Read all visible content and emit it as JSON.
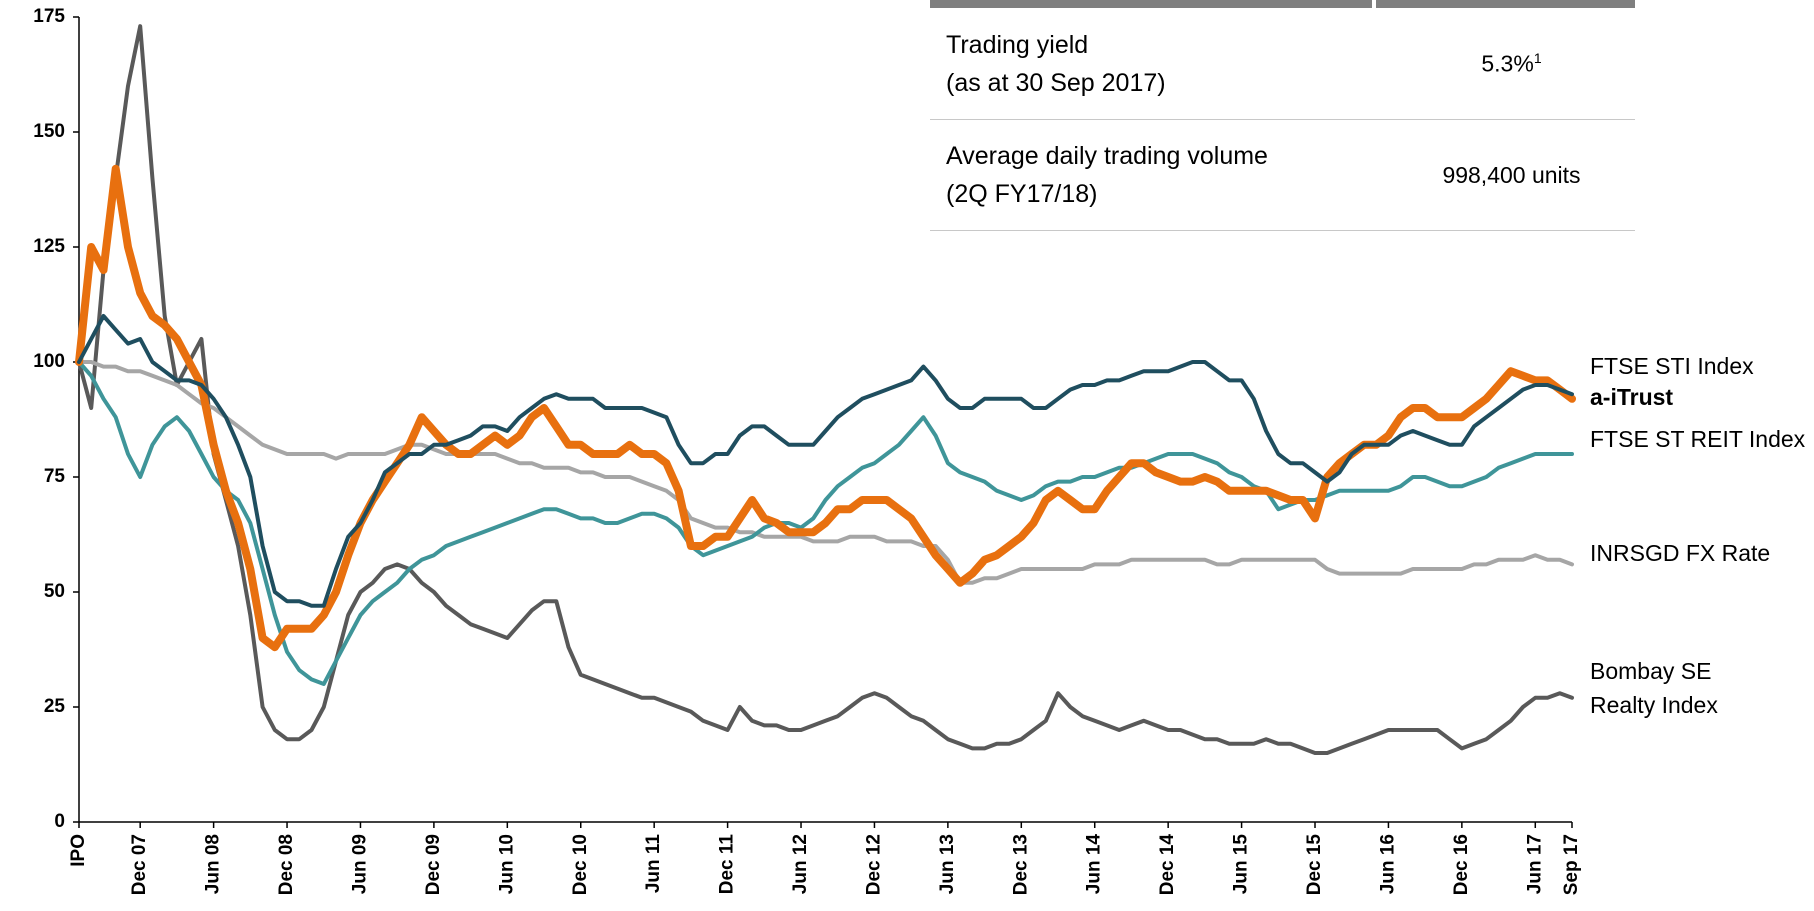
{
  "chart_data": {
    "type": "line",
    "categories": [
      "IPO",
      null,
      null,
      null,
      null,
      "Dec 07",
      null,
      null,
      null,
      null,
      null,
      "Jun 08",
      null,
      null,
      null,
      null,
      null,
      "Dec 08",
      null,
      null,
      null,
      null,
      null,
      "Jun 09",
      null,
      null,
      null,
      null,
      null,
      "Dec 09",
      null,
      null,
      null,
      null,
      null,
      "Jun 10",
      null,
      null,
      null,
      null,
      null,
      "Dec 10",
      null,
      null,
      null,
      null,
      null,
      "Jun 11",
      null,
      null,
      null,
      null,
      null,
      "Dec 11",
      null,
      null,
      null,
      null,
      null,
      "Jun 12",
      null,
      null,
      null,
      null,
      null,
      "Dec 12",
      null,
      null,
      null,
      null,
      null,
      "Jun 13",
      null,
      null,
      null,
      null,
      null,
      "Dec 13",
      null,
      null,
      null,
      null,
      null,
      "Jun 14",
      null,
      null,
      null,
      null,
      null,
      "Dec 14",
      null,
      null,
      null,
      null,
      null,
      "Jun 15",
      null,
      null,
      null,
      null,
      null,
      "Dec 15",
      null,
      null,
      null,
      null,
      null,
      "Jun 16",
      null,
      null,
      null,
      null,
      null,
      "Dec 16",
      null,
      null,
      null,
      null,
      null,
      "Jun 17",
      null,
      null,
      "Sep 17"
    ],
    "series": [
      {
        "name": "FTSE STI Index",
        "color": "#1f4e5f",
        "line_width": 4,
        "values": [
          100,
          105,
          110,
          107,
          104,
          105,
          100,
          98,
          96,
          96,
          95,
          92,
          88,
          82,
          75,
          60,
          50,
          48,
          48,
          47,
          47,
          55,
          62,
          65,
          70,
          76,
          78,
          80,
          80,
          82,
          82,
          83,
          84,
          86,
          86,
          85,
          88,
          90,
          92,
          93,
          92,
          92,
          92,
          90,
          90,
          90,
          90,
          89,
          88,
          82,
          78,
          78,
          80,
          80,
          84,
          86,
          86,
          84,
          82,
          82,
          82,
          85,
          88,
          90,
          92,
          93,
          94,
          95,
          96,
          99,
          96,
          92,
          90,
          90,
          92,
          92,
          92,
          92,
          90,
          90,
          92,
          94,
          95,
          95,
          96,
          96,
          97,
          98,
          98,
          98,
          99,
          100,
          100,
          98,
          96,
          96,
          92,
          85,
          80,
          78,
          78,
          76,
          74,
          76,
          80,
          82,
          82,
          82,
          84,
          85,
          84,
          83,
          82,
          82,
          86,
          88,
          90,
          92,
          94,
          95,
          95,
          94,
          93
        ]
      },
      {
        "name": "a-iTrust",
        "color": "#e8700f",
        "line_width": 8,
        "bold": true,
        "values": [
          100,
          125,
          120,
          142,
          125,
          115,
          110,
          108,
          105,
          100,
          95,
          82,
          72,
          65,
          55,
          40,
          38,
          42,
          42,
          42,
          45,
          50,
          58,
          65,
          70,
          74,
          78,
          82,
          88,
          85,
          82,
          80,
          80,
          82,
          84,
          82,
          84,
          88,
          90,
          86,
          82,
          82,
          80,
          80,
          80,
          82,
          80,
          80,
          78,
          72,
          60,
          60,
          62,
          62,
          66,
          70,
          66,
          65,
          63,
          63,
          63,
          65,
          68,
          68,
          70,
          70,
          70,
          68,
          66,
          62,
          58,
          55,
          52,
          54,
          57,
          58,
          60,
          62,
          65,
          70,
          72,
          70,
          68,
          68,
          72,
          75,
          78,
          78,
          76,
          75,
          74,
          74,
          75,
          74,
          72,
          72,
          72,
          72,
          71,
          70,
          70,
          66,
          75,
          78,
          80,
          82,
          82,
          84,
          88,
          90,
          90,
          88,
          88,
          88,
          90,
          92,
          95,
          98,
          97,
          96,
          96,
          94,
          92
        ]
      },
      {
        "name": "FTSE ST REIT Index",
        "color": "#3f9599",
        "line_width": 4,
        "values": [
          100,
          97,
          92,
          88,
          80,
          75,
          82,
          86,
          88,
          85,
          80,
          75,
          72,
          70,
          65,
          55,
          45,
          37,
          33,
          31,
          30,
          35,
          40,
          45,
          48,
          50,
          52,
          55,
          57,
          58,
          60,
          61,
          62,
          63,
          64,
          65,
          66,
          67,
          68,
          68,
          67,
          66,
          66,
          65,
          65,
          66,
          67,
          67,
          66,
          64,
          60,
          58,
          59,
          60,
          61,
          62,
          64,
          65,
          65,
          64,
          66,
          70,
          73,
          75,
          77,
          78,
          80,
          82,
          85,
          88,
          84,
          78,
          76,
          75,
          74,
          72,
          71,
          70,
          71,
          73,
          74,
          74,
          75,
          75,
          76,
          77,
          77,
          78,
          79,
          80,
          80,
          80,
          79,
          78,
          76,
          75,
          73,
          72,
          68,
          69,
          70,
          70,
          71,
          72,
          72,
          72,
          72,
          72,
          73,
          75,
          75,
          74,
          73,
          73,
          74,
          75,
          77,
          78,
          79,
          80,
          80,
          80,
          80
        ]
      },
      {
        "name": "INRSGD FX Rate",
        "color": "#a6a6a6",
        "line_width": 4,
        "values": [
          100,
          100,
          99,
          99,
          98,
          98,
          97,
          96,
          95,
          93,
          91,
          90,
          88,
          86,
          84,
          82,
          81,
          80,
          80,
          80,
          80,
          79,
          80,
          80,
          80,
          80,
          81,
          82,
          82,
          81,
          80,
          80,
          80,
          80,
          80,
          79,
          78,
          78,
          77,
          77,
          77,
          76,
          76,
          75,
          75,
          75,
          74,
          73,
          72,
          70,
          66,
          65,
          64,
          64,
          63,
          63,
          62,
          62,
          62,
          62,
          61,
          61,
          61,
          62,
          62,
          62,
          61,
          61,
          61,
          60,
          60,
          57,
          52,
          52,
          53,
          53,
          54,
          55,
          55,
          55,
          55,
          55,
          55,
          56,
          56,
          56,
          57,
          57,
          57,
          57,
          57,
          57,
          57,
          56,
          56,
          57,
          57,
          57,
          57,
          57,
          57,
          57,
          55,
          54,
          54,
          54,
          54,
          54,
          54,
          55,
          55,
          55,
          55,
          55,
          56,
          56,
          57,
          57,
          57,
          58,
          57,
          57,
          56
        ]
      },
      {
        "name": "Bombay SE Realty Index",
        "color": "#595959",
        "line_width": 4,
        "values": [
          100,
          90,
          120,
          140,
          160,
          173,
          140,
          110,
          95,
          100,
          105,
          80,
          70,
          60,
          45,
          25,
          20,
          18,
          18,
          20,
          25,
          35,
          45,
          50,
          52,
          55,
          56,
          55,
          52,
          50,
          47,
          45,
          43,
          42,
          41,
          40,
          43,
          46,
          48,
          48,
          38,
          32,
          31,
          30,
          29,
          28,
          27,
          27,
          26,
          25,
          24,
          22,
          21,
          20,
          25,
          22,
          21,
          21,
          20,
          20,
          21,
          22,
          23,
          25,
          27,
          28,
          27,
          25,
          23,
          22,
          20,
          18,
          17,
          16,
          16,
          17,
          17,
          18,
          20,
          22,
          28,
          25,
          23,
          22,
          21,
          20,
          21,
          22,
          21,
          20,
          20,
          19,
          18,
          18,
          17,
          17,
          17,
          18,
          17,
          17,
          16,
          15,
          15,
          16,
          17,
          18,
          19,
          20,
          20,
          20,
          20,
          20,
          18,
          16,
          17,
          18,
          20,
          22,
          25,
          27,
          27,
          28,
          27
        ]
      }
    ],
    "ylim": [
      0,
      175
    ],
    "yticks": [
      0,
      25,
      50,
      75,
      100,
      125,
      150,
      175
    ],
    "grid": false
  },
  "table": {
    "rows": [
      {
        "label": [
          "Trading yield",
          "(as at 30 Sep 2017)"
        ],
        "value": "5.3%",
        "footnote_mark": "1"
      },
      {
        "label": [
          "Average daily trading volume",
          "(2Q FY17/18)"
        ],
        "value": "998,400 units"
      }
    ]
  }
}
